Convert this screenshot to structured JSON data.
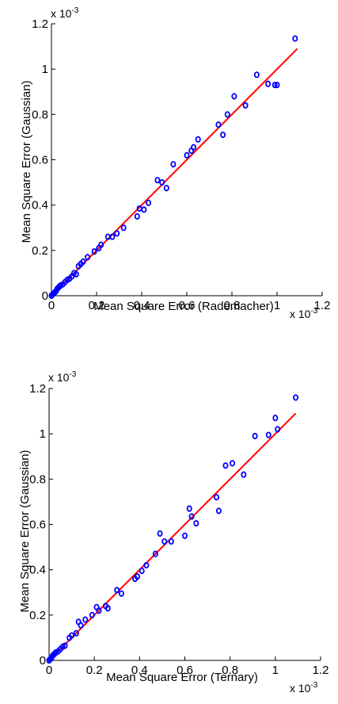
{
  "chart_data": [
    {
      "type": "scatter",
      "xlabel": "Mean Square Error (Rademacher)",
      "ylabel": "Mean Square Error (Gaussian)",
      "xlim": [
        0,
        1.2
      ],
      "ylim": [
        0,
        1.2
      ],
      "x_ticks": [
        "0",
        "0.2",
        "0.4",
        "0.6",
        "0.8",
        "1",
        "1.2"
      ],
      "y_ticks": [
        "0",
        "0.2",
        "0.4",
        "0.6",
        "0.8",
        "1",
        "1.2"
      ],
      "x_exponent": "x 10",
      "x_exponent_power": "-3",
      "y_exponent": "x 10",
      "y_exponent_power": "-3",
      "scale_factor": 0.001,
      "grid": false,
      "marker_color": "#0000ff",
      "line_color": "#ff0000",
      "fit_line": {
        "x": [
          0,
          1.09
        ],
        "y": [
          0,
          1.09
        ]
      },
      "points": {
        "x": [
          0.0,
          0.005,
          0.01,
          0.015,
          0.02,
          0.025,
          0.03,
          0.035,
          0.04,
          0.05,
          0.06,
          0.07,
          0.08,
          0.09,
          0.1,
          0.11,
          0.12,
          0.13,
          0.14,
          0.16,
          0.19,
          0.21,
          0.22,
          0.25,
          0.27,
          0.29,
          0.32,
          0.38,
          0.39,
          0.41,
          0.43,
          0.47,
          0.49,
          0.51,
          0.54,
          0.6,
          0.62,
          0.63,
          0.65,
          0.74,
          0.76,
          0.78,
          0.81,
          0.86,
          0.91,
          0.96,
          0.99,
          1.0,
          1.08
        ],
        "y": [
          0.0,
          0.005,
          0.01,
          0.015,
          0.02,
          0.03,
          0.035,
          0.04,
          0.045,
          0.05,
          0.06,
          0.07,
          0.075,
          0.085,
          0.1,
          0.095,
          0.13,
          0.14,
          0.15,
          0.17,
          0.195,
          0.21,
          0.225,
          0.26,
          0.26,
          0.275,
          0.3,
          0.35,
          0.385,
          0.38,
          0.41,
          0.51,
          0.5,
          0.475,
          0.58,
          0.62,
          0.64,
          0.655,
          0.69,
          0.755,
          0.71,
          0.8,
          0.88,
          0.84,
          0.975,
          0.935,
          0.93,
          0.93,
          1.135
        ]
      }
    },
    {
      "type": "scatter",
      "xlabel": "Mean Square Error (Ternary)",
      "ylabel": "Mean Square Error (Gaussian)",
      "xlim": [
        0,
        1.2
      ],
      "ylim": [
        0,
        1.2
      ],
      "x_ticks": [
        "0",
        "0.2",
        "0.4",
        "0.6",
        "0.8",
        "1",
        "1.2"
      ],
      "y_ticks": [
        "0",
        "0.2",
        "0.4",
        "0.6",
        "0.8",
        "1",
        "1.2"
      ],
      "x_exponent": "x 10",
      "x_exponent_power": "-3",
      "y_exponent": "x 10",
      "y_exponent_power": "-3",
      "scale_factor": 0.001,
      "grid": false,
      "marker_color": "#0000ff",
      "line_color": "#ff0000",
      "fit_line": {
        "x": [
          0,
          1.09
        ],
        "y": [
          0,
          1.09
        ]
      },
      "points": {
        "x": [
          0.0,
          0.005,
          0.01,
          0.015,
          0.02,
          0.025,
          0.03,
          0.04,
          0.05,
          0.06,
          0.07,
          0.09,
          0.1,
          0.12,
          0.13,
          0.14,
          0.16,
          0.19,
          0.21,
          0.22,
          0.25,
          0.26,
          0.3,
          0.32,
          0.38,
          0.39,
          0.41,
          0.43,
          0.47,
          0.49,
          0.51,
          0.54,
          0.6,
          0.62,
          0.63,
          0.65,
          0.74,
          0.75,
          0.78,
          0.81,
          0.86,
          0.91,
          0.97,
          1.0,
          1.01,
          1.09
        ],
        "y": [
          0.0,
          0.005,
          0.01,
          0.02,
          0.025,
          0.03,
          0.035,
          0.04,
          0.05,
          0.06,
          0.065,
          0.1,
          0.11,
          0.12,
          0.17,
          0.155,
          0.18,
          0.2,
          0.235,
          0.22,
          0.24,
          0.23,
          0.31,
          0.295,
          0.36,
          0.37,
          0.395,
          0.42,
          0.47,
          0.56,
          0.525,
          0.525,
          0.55,
          0.67,
          0.635,
          0.605,
          0.72,
          0.66,
          0.86,
          0.87,
          0.82,
          0.99,
          0.995,
          1.07,
          1.02,
          1.16
        ]
      }
    }
  ]
}
